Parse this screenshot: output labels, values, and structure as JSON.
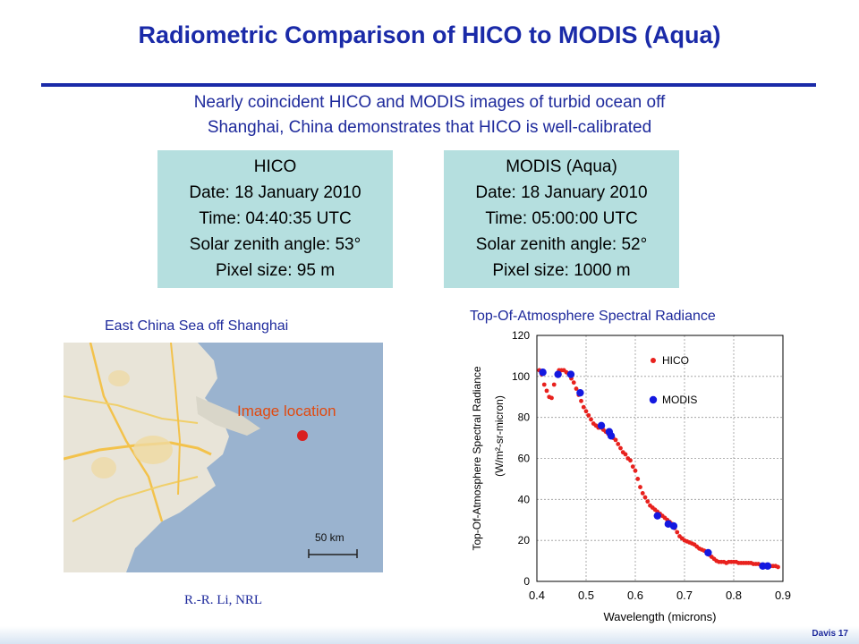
{
  "slide": {
    "title": "Radiometric Comparison of HICO to MODIS (Aqua)",
    "subtitle_line1": "Nearly coincident HICO and MODIS images of turbid ocean off",
    "subtitle_line2": "Shanghai, China  demonstrates that HICO is well-calibrated",
    "accent_color": "#1a2aa8",
    "box_color": "#b5dfdf",
    "footer": "Davis  17"
  },
  "hico_box": {
    "name": "HICO",
    "date": "Date: 18 January 2010",
    "time": "Time: 04:40:35 UTC",
    "zenith": "Solar zenith angle: 53°",
    "pixel": "Pixel size: 95 m"
  },
  "modis_box": {
    "name": "MODIS (Aqua)",
    "date": "Date: 18 January 2010",
    "time": "Time: 05:00:00 UTC",
    "zenith": "Solar zenith angle: 52°",
    "pixel": "Pixel size: 1000 m"
  },
  "map": {
    "caption": "East China Sea off Shanghai",
    "location_label": "Image location",
    "scale_label": "50 km",
    "credit": "R.-R. Li, NRL"
  },
  "chart_data": {
    "type": "scatter",
    "title": "Top-Of-Atmosphere Spectral Radiance",
    "xlabel": "Wavelength (microns)",
    "ylabel": "Top-Of-Atmosphere Spectral Radiance",
    "ylabel_units": "(W/m²-sr-micron)",
    "xlim": [
      0.4,
      0.9
    ],
    "ylim": [
      0,
      120
    ],
    "xticks": [
      "0.4",
      "0.5",
      "0.6",
      "0.7",
      "0.8",
      "0.9"
    ],
    "yticks": [
      "0",
      "20",
      "40",
      "60",
      "80",
      "100",
      "120"
    ],
    "grid": true,
    "legend_position": "top-right",
    "series": [
      {
        "name": "HICO",
        "color": "#e8211d",
        "points": [
          [
            0.405,
            103
          ],
          [
            0.41,
            101
          ],
          [
            0.415,
            96
          ],
          [
            0.42,
            93
          ],
          [
            0.425,
            90
          ],
          [
            0.43,
            89.5
          ],
          [
            0.435,
            96
          ],
          [
            0.44,
            101
          ],
          [
            0.445,
            103
          ],
          [
            0.45,
            103
          ],
          [
            0.455,
            103
          ],
          [
            0.46,
            102
          ],
          [
            0.465,
            101
          ],
          [
            0.47,
            99
          ],
          [
            0.475,
            97
          ],
          [
            0.48,
            94
          ],
          [
            0.485,
            91
          ],
          [
            0.49,
            88
          ],
          [
            0.495,
            85
          ],
          [
            0.5,
            83
          ],
          [
            0.505,
            81
          ],
          [
            0.51,
            79
          ],
          [
            0.515,
            77
          ],
          [
            0.52,
            76
          ],
          [
            0.525,
            75
          ],
          [
            0.53,
            75
          ],
          [
            0.535,
            74
          ],
          [
            0.54,
            73
          ],
          [
            0.545,
            72
          ],
          [
            0.55,
            71
          ],
          [
            0.555,
            70
          ],
          [
            0.56,
            69
          ],
          [
            0.565,
            67
          ],
          [
            0.57,
            65
          ],
          [
            0.575,
            63
          ],
          [
            0.58,
            62
          ],
          [
            0.585,
            60
          ],
          [
            0.59,
            59
          ],
          [
            0.595,
            56
          ],
          [
            0.6,
            54
          ],
          [
            0.605,
            50
          ],
          [
            0.61,
            46
          ],
          [
            0.615,
            43
          ],
          [
            0.62,
            41
          ],
          [
            0.625,
            39
          ],
          [
            0.63,
            37
          ],
          [
            0.635,
            36
          ],
          [
            0.64,
            35
          ],
          [
            0.645,
            34
          ],
          [
            0.65,
            33
          ],
          [
            0.655,
            32
          ],
          [
            0.66,
            31
          ],
          [
            0.665,
            30
          ],
          [
            0.67,
            29
          ],
          [
            0.675,
            28
          ],
          [
            0.68,
            26
          ],
          [
            0.685,
            24
          ],
          [
            0.69,
            22
          ],
          [
            0.695,
            21
          ],
          [
            0.7,
            20
          ],
          [
            0.705,
            19.5
          ],
          [
            0.71,
            19
          ],
          [
            0.715,
            18.5
          ],
          [
            0.72,
            18
          ],
          [
            0.725,
            17
          ],
          [
            0.73,
            16
          ],
          [
            0.735,
            15.5
          ],
          [
            0.74,
            15
          ],
          [
            0.745,
            14
          ],
          [
            0.75,
            13
          ],
          [
            0.755,
            12
          ],
          [
            0.76,
            11
          ],
          [
            0.765,
            10
          ],
          [
            0.77,
            9.5
          ],
          [
            0.775,
            9.5
          ],
          [
            0.78,
            9.5
          ],
          [
            0.785,
            9
          ],
          [
            0.79,
            9.5
          ],
          [
            0.795,
            9.5
          ],
          [
            0.8,
            9.5
          ],
          [
            0.805,
            9.5
          ],
          [
            0.81,
            9
          ],
          [
            0.815,
            9
          ],
          [
            0.82,
            9
          ],
          [
            0.825,
            9
          ],
          [
            0.83,
            9
          ],
          [
            0.835,
            9
          ],
          [
            0.84,
            8.5
          ],
          [
            0.845,
            8.5
          ],
          [
            0.85,
            8.5
          ],
          [
            0.855,
            8
          ],
          [
            0.86,
            8
          ],
          [
            0.865,
            8
          ],
          [
            0.87,
            8
          ],
          [
            0.875,
            7.5
          ],
          [
            0.88,
            7.5
          ],
          [
            0.885,
            7.5
          ],
          [
            0.89,
            7
          ]
        ]
      },
      {
        "name": "MODIS",
        "color": "#1418e0",
        "points": [
          [
            0.412,
            102
          ],
          [
            0.443,
            101
          ],
          [
            0.469,
            101
          ],
          [
            0.488,
            92
          ],
          [
            0.531,
            76
          ],
          [
            0.547,
            73
          ],
          [
            0.551,
            71
          ],
          [
            0.645,
            32
          ],
          [
            0.667,
            28
          ],
          [
            0.678,
            27
          ],
          [
            0.748,
            14
          ],
          [
            0.859,
            7.5
          ],
          [
            0.869,
            7.5
          ]
        ]
      }
    ]
  }
}
